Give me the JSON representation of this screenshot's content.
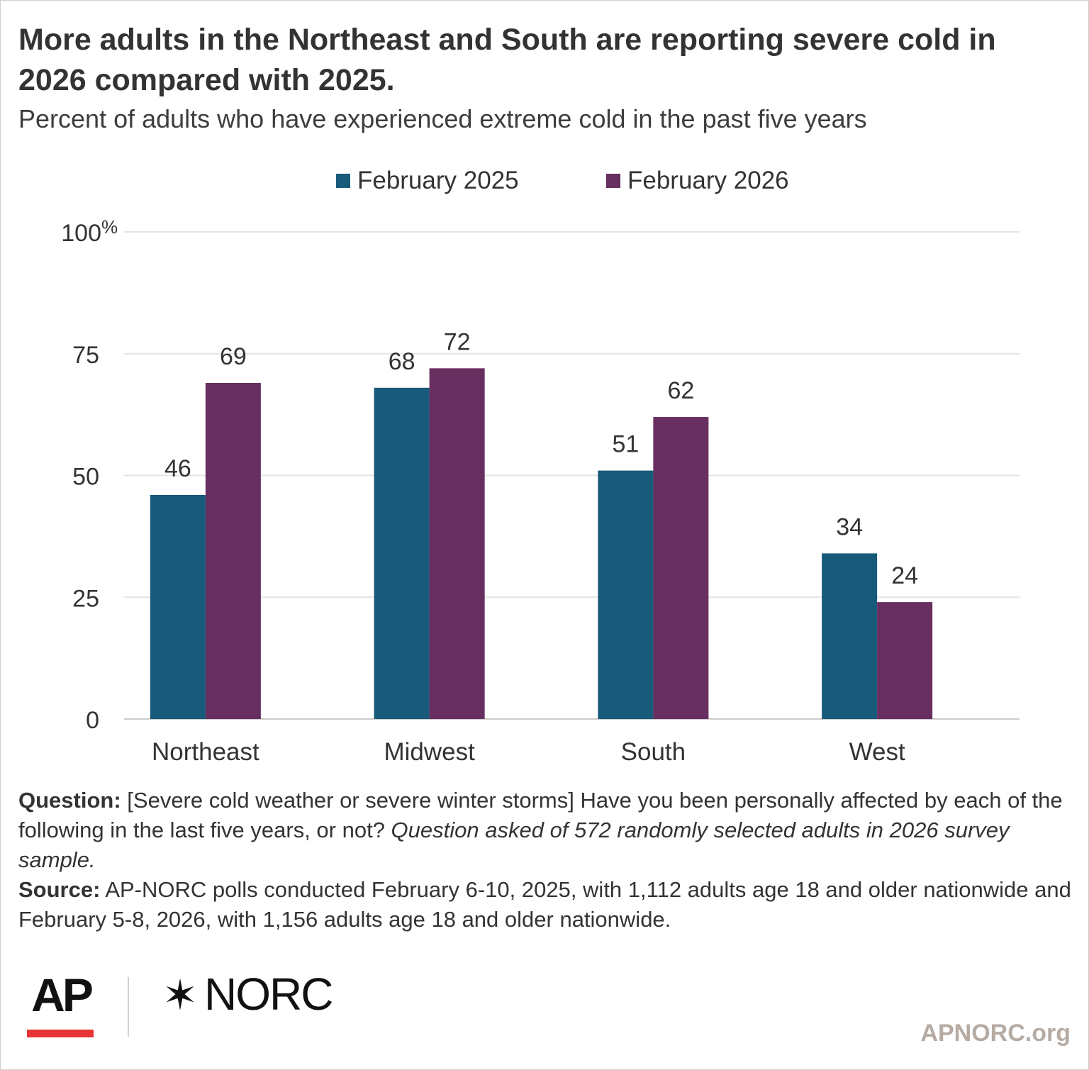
{
  "title": "More adults in the Northeast and South are reporting severe cold in 2026 compared with 2025.",
  "subtitle": "Percent of adults who have experienced extreme cold in the past five years",
  "colors": {
    "series_2025": "#175a7a",
    "series_2026": "#672e60",
    "grid": "#e4e4e4",
    "site": "#b5aba3",
    "ap_red": "#e63434"
  },
  "chart_data": {
    "type": "bar",
    "title": "More adults in the Northeast and South are reporting severe cold in 2026 compared with 2025.",
    "subtitle": "Percent of adults who have experienced extreme cold in the past five years",
    "categories": [
      "Northeast",
      "Midwest",
      "South",
      "West"
    ],
    "series": [
      {
        "name": "February 2025",
        "values": [
          46,
          68,
          51,
          34
        ]
      },
      {
        "name": "February 2026",
        "values": [
          69,
          72,
          62,
          24
        ]
      }
    ],
    "ylim": [
      0,
      100
    ],
    "yticks": [
      0,
      25,
      50,
      75,
      100
    ],
    "ytick_labels": [
      "0",
      "25",
      "50",
      "75",
      "100"
    ],
    "y_unit_suffix": "%",
    "xlabel": "",
    "ylabel": "",
    "grid": true,
    "legend_position": "top"
  },
  "notes": {
    "question_label": "Question:",
    "question_text": " [Severe cold weather or severe winter storms] Have you been personally affected by each of the following in the last five years, or not? ",
    "question_italic": "Question asked of 572 randomly selected adults in 2026 survey sample.",
    "source_label": "Source:",
    "source_text": " AP-NORC polls conducted February 6-10, 2025, with 1,112 adults age 18 and older nationwide and February 5-8, 2026, with 1,156 adults age 18 and older nationwide."
  },
  "logos": {
    "ap": "AP",
    "norc": "NORC",
    "norc_mark": "✶"
  },
  "site": "APNORC.org"
}
